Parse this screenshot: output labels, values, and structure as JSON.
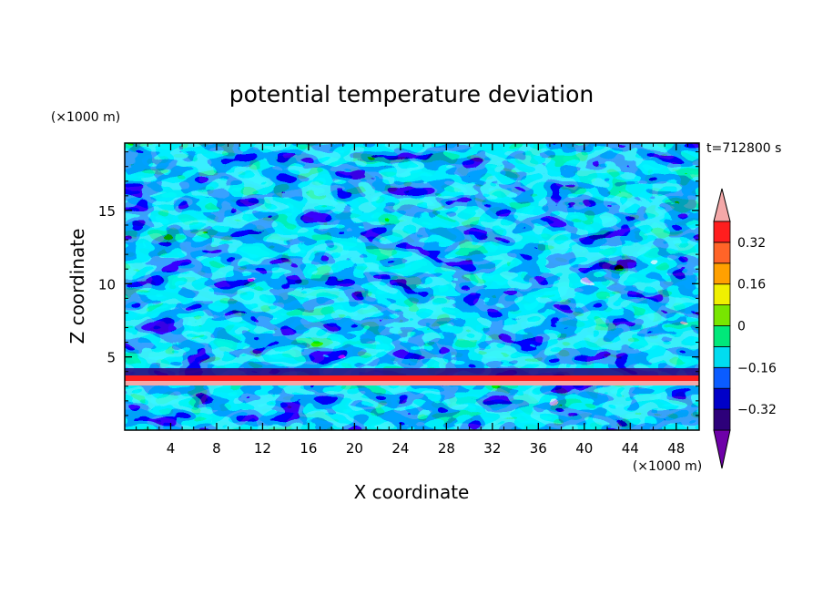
{
  "chart_data": {
    "type": "heatmap",
    "title": "potential temperature deviation",
    "xlabel": "X coordinate",
    "ylabel": "Z coordinate",
    "x_unit": "(×1000 m)",
    "y_unit": "(×1000 m)",
    "time_label": "t=712800 s",
    "xlim": [
      0,
      50
    ],
    "ylim": [
      0,
      19.6
    ],
    "x_ticks": [
      4,
      8,
      12,
      16,
      20,
      24,
      28,
      32,
      36,
      40,
      44,
      48
    ],
    "y_ticks": [
      5,
      10,
      15
    ],
    "colorbar": {
      "labels": [
        "0.32",
        "0.16",
        "0",
        "−0.16",
        "−0.32"
      ],
      "label_values": [
        0.32,
        0.16,
        0,
        -0.16,
        -0.32
      ],
      "levels": [
        -0.4,
        -0.32,
        -0.24,
        -0.16,
        -0.08,
        0,
        0.08,
        0.16,
        0.24,
        0.32,
        0.4
      ],
      "colors": [
        "#6e00a8",
        "#2d007a",
        "#0000c8",
        "#0a5cff",
        "#00dcf0",
        "#00e87a",
        "#78e600",
        "#f0f000",
        "#ffa000",
        "#ff6428",
        "#ff1e1e",
        "#f4a8a8"
      ],
      "extend": "both"
    },
    "field_description": "turbulent field; strong warm/cold band near z≈3.5–4 km"
  }
}
